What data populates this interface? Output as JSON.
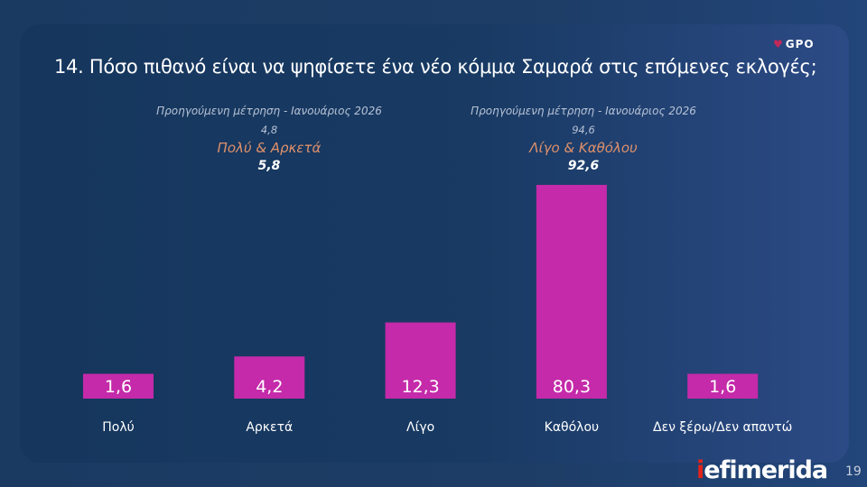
{
  "title": "14. Πόσο πιθανό είναι να ψηφίσετε ένα νέο κόμμα Σαμαρά στις επόμενες εκλογές;",
  "logo": "GPO",
  "groups": [
    {
      "previous_label": "Προηγούμενη μέτρηση - Ιανουάριος 2026",
      "previous_value": "4,8",
      "name": "Πολύ & Αρκετά",
      "value": "5,8"
    },
    {
      "previous_label": "Προηγούμενη μέτρηση - Ιανουάριος 2026",
      "previous_value": "94,6",
      "name": "Λίγο & Καθόλου",
      "value": "92,6"
    }
  ],
  "chart_data": {
    "type": "bar",
    "categories": [
      "Πολύ",
      "Αρκετά",
      "Λίγο",
      "Καθόλου",
      "Δεν ξέρω/Δεν απαντώ"
    ],
    "values": [
      1.6,
      4.2,
      12.3,
      80.3,
      1.6
    ],
    "value_labels": [
      "1,6",
      "4,2",
      "12,3",
      "80,3",
      "1,6"
    ],
    "bar_color": "#c42aa9",
    "grid": false
  },
  "footer": {
    "brand": "efimerida",
    "brand_prefix": "i",
    "page": "19"
  }
}
